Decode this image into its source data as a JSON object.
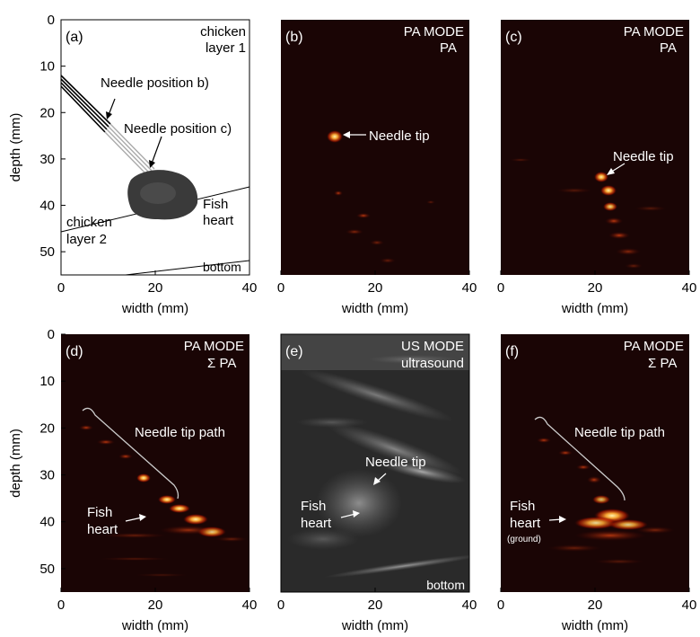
{
  "figure": {
    "axis": {
      "xlabel": "width (mm)",
      "ylabel": "depth (mm)",
      "xticks": [
        "0",
        "20",
        "40"
      ],
      "yticks": [
        "0",
        "10",
        "20",
        "30",
        "40",
        "50"
      ]
    },
    "panels": [
      {
        "id": "a",
        "letter": "(a)",
        "kind": "schematic",
        "labels": [
          "chicken",
          "layer 1",
          "Needle position b)",
          "Needle position c)",
          "Fish",
          "heart",
          "chicken",
          "layer 2",
          "bottom"
        ]
      },
      {
        "id": "b",
        "letter": "(b)",
        "kind": "photoacoustic",
        "mode": [
          "PA MODE",
          "PA"
        ],
        "annotations": [
          "Needle tip"
        ]
      },
      {
        "id": "c",
        "letter": "(c)",
        "kind": "photoacoustic",
        "mode": [
          "PA MODE",
          "PA"
        ],
        "annotations": [
          "Needle tip"
        ]
      },
      {
        "id": "d",
        "letter": "(d)",
        "kind": "photoacoustic-sum",
        "mode": [
          "PA MODE",
          "Σ PA"
        ],
        "annotations": [
          "Needle tip path",
          "Fish",
          "heart"
        ]
      },
      {
        "id": "e",
        "letter": "(e)",
        "kind": "ultrasound",
        "mode": [
          "US MODE",
          "ultrasound"
        ],
        "annotations": [
          "Needle tip",
          "Fish",
          "heart",
          "bottom"
        ]
      },
      {
        "id": "f",
        "letter": "(f)",
        "kind": "photoacoustic-sum",
        "mode": [
          "PA MODE",
          "Σ PA"
        ],
        "annotations": [
          "Needle tip path",
          "Fish",
          "heart",
          "(ground)"
        ]
      }
    ],
    "colors": {
      "pa_background": "#1a0505",
      "pa_hot": "#ffcc55",
      "pa_mid": "#dd4411",
      "us_background": "#2a2a2a",
      "us_bright": "#e0e0e0",
      "fish_heart": "#3a3a3a"
    }
  }
}
